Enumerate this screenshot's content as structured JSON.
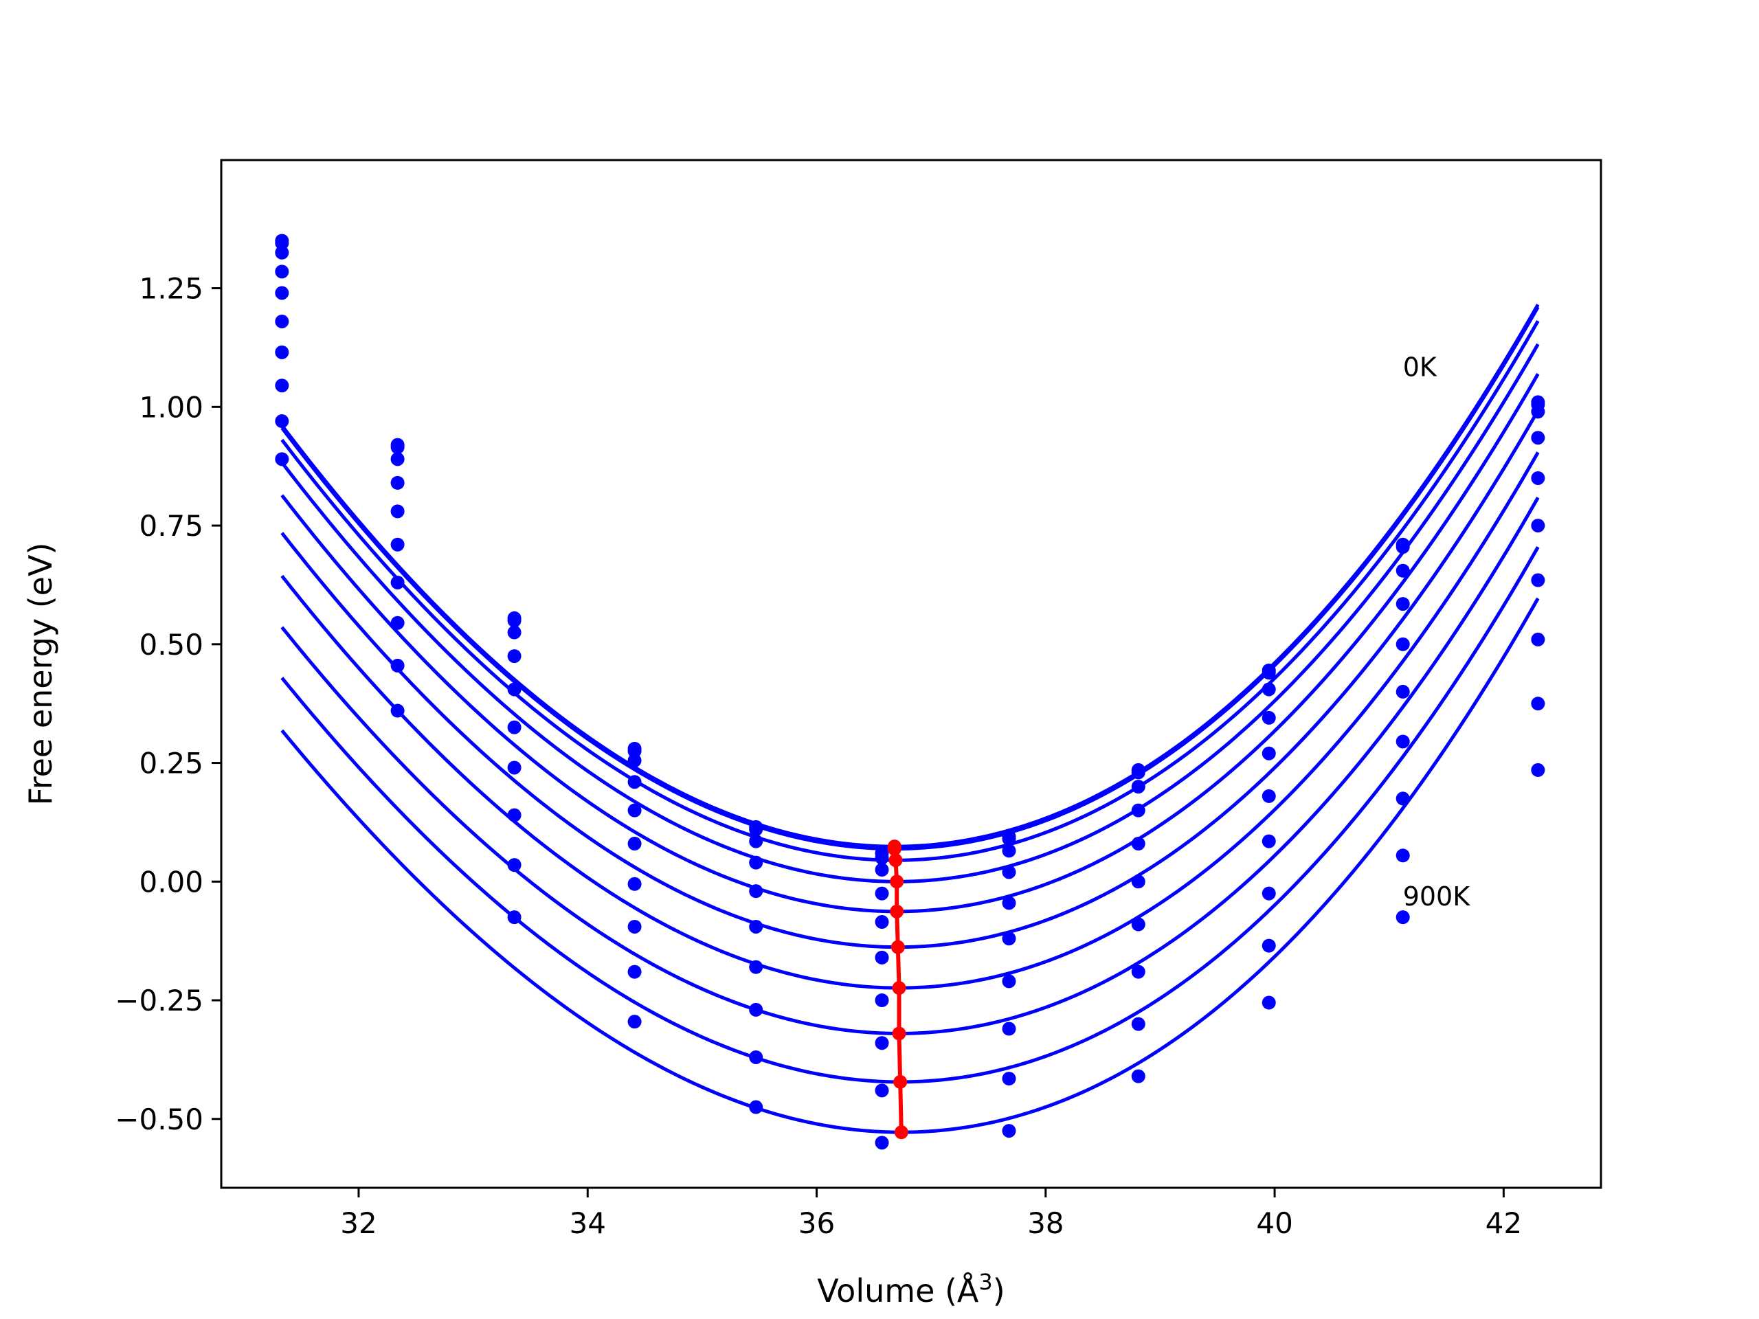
{
  "chart_data": {
    "type": "line",
    "xlabel": "Volume (Å$^3$)",
    "ylabel": "Free energy (eV)",
    "xlim": [
      30.8,
      42.85
    ],
    "ylim": [
      -0.645,
      1.52
    ],
    "xticks": [
      32,
      34,
      36,
      38,
      40,
      42
    ],
    "xtick_labels": [
      "32",
      "34",
      "36",
      "38",
      "40",
      "42"
    ],
    "yticks": [
      -0.5,
      -0.25,
      0.0,
      0.25,
      0.5,
      0.75,
      1.0,
      1.25
    ],
    "ytick_labels": [
      "−0.50",
      "−0.25",
      "0.00",
      "0.25",
      "0.50",
      "0.75",
      "1.00",
      "1.25"
    ],
    "grid": false,
    "legend": null,
    "annotations": [
      {
        "text": "0K",
        "x": 41.12,
        "y": 1.065
      },
      {
        "text": "900K",
        "x": 41.12,
        "y": -0.05
      }
    ],
    "colors": {
      "curves": "#0000ff",
      "points": "#0000ff",
      "minima": "#ff0000"
    },
    "volumes": [
      31.33,
      32.34,
      33.36,
      34.41,
      35.47,
      36.57,
      37.68,
      38.81,
      39.95,
      41.12,
      42.3
    ],
    "fit_x_range": [
      31.33,
      42.3
    ],
    "series": [
      {
        "values": [
          1.35,
          0.92,
          0.555,
          0.28,
          0.115,
          0.06,
          0.095,
          0.235,
          0.445,
          0.71,
          1.01
        ],
        "fit": {
          "v0": 36.68,
          "e0": 0.074,
          "a": 0.0335,
          "b": 0.00047
        }
      },
      {
        "values": [
          1.345,
          0.915,
          0.55,
          0.275,
          0.11,
          0.05,
          0.09,
          0.23,
          0.44,
          0.705,
          1.005
        ],
        "fit": {
          "v0": 36.68,
          "e0": 0.069,
          "a": 0.0335,
          "b": 0.00047
        }
      },
      {
        "values": [
          1.325,
          0.89,
          0.525,
          0.255,
          0.085,
          0.025,
          0.065,
          0.2,
          0.405,
          0.655,
          0.99
        ],
        "fit": {
          "v0": 36.69,
          "e0": 0.045,
          "a": 0.0334,
          "b": 0.00048
        }
      },
      {
        "values": [
          1.285,
          0.84,
          0.475,
          0.21,
          0.04,
          -0.025,
          0.02,
          0.15,
          0.345,
          0.585,
          0.935
        ],
        "fit": {
          "v0": 36.7,
          "e0": 0.0,
          "a": 0.0333,
          "b": 0.0005
        }
      },
      {
        "values": [
          1.24,
          0.78,
          0.405,
          0.15,
          -0.02,
          -0.085,
          -0.045,
          0.08,
          0.27,
          0.5,
          0.85
        ],
        "fit": {
          "v0": 36.7,
          "e0": -0.063,
          "a": 0.0332,
          "b": 0.00052
        }
      },
      {
        "values": [
          1.18,
          0.71,
          0.325,
          0.08,
          -0.095,
          -0.16,
          -0.12,
          0.0,
          0.18,
          0.4,
          0.75
        ],
        "fit": {
          "v0": 36.71,
          "e0": -0.138,
          "a": 0.0331,
          "b": 0.00055
        }
      },
      {
        "values": [
          1.115,
          0.63,
          0.24,
          -0.005,
          -0.18,
          -0.25,
          -0.21,
          -0.09,
          0.085,
          0.295,
          0.635
        ],
        "fit": {
          "v0": 36.72,
          "e0": -0.224,
          "a": 0.033,
          "b": 0.00058
        }
      },
      {
        "values": [
          1.045,
          0.545,
          0.14,
          -0.095,
          -0.27,
          -0.34,
          -0.31,
          -0.19,
          -0.025,
          0.175,
          0.51
        ],
        "fit": {
          "v0": 36.72,
          "e0": -0.32,
          "a": 0.0328,
          "b": 0.00062
        }
      },
      {
        "values": [
          0.97,
          0.455,
          0.035,
          -0.19,
          -0.37,
          -0.44,
          -0.415,
          -0.3,
          -0.135,
          0.055,
          0.375
        ],
        "fit": {
          "v0": 36.73,
          "e0": -0.422,
          "a": 0.0327,
          "b": 0.00065
        }
      },
      {
        "values": [
          0.89,
          0.36,
          -0.075,
          -0.295,
          -0.475,
          -0.55,
          -0.525,
          -0.41,
          -0.255,
          -0.075,
          0.235
        ],
        "fit": {
          "v0": 36.74,
          "e0": -0.528,
          "a": 0.0326,
          "b": 0.00068
        }
      }
    ],
    "minima": {
      "x": [
        36.68,
        36.68,
        36.69,
        36.7,
        36.7,
        36.71,
        36.72,
        36.72,
        36.73,
        36.74
      ],
      "y": [
        0.074,
        0.069,
        0.045,
        0.0,
        -0.063,
        -0.138,
        -0.224,
        -0.32,
        -0.422,
        -0.528
      ]
    }
  }
}
